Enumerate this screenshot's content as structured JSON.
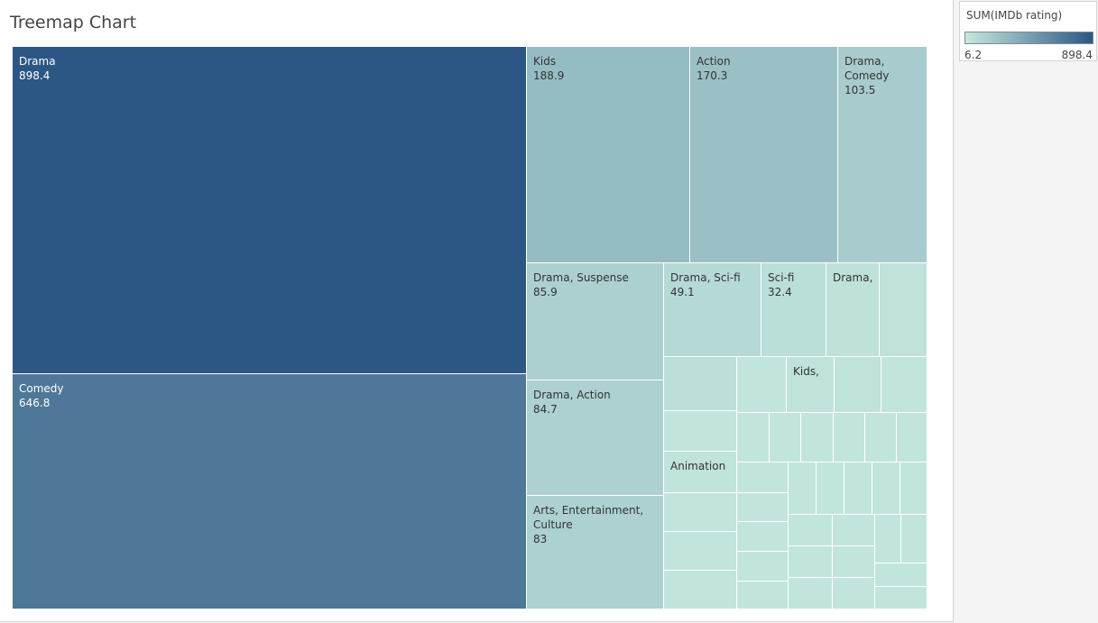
{
  "chart_data": {
    "type": "treemap",
    "title": "Treemap Chart",
    "measure": "SUM(IMDb rating)",
    "color_range": [
      6.2,
      898.4
    ],
    "colors": {
      "low": "#c5e8de",
      "high": "#2c5785"
    },
    "items": [
      {
        "name": "Drama",
        "value": 898.4,
        "label": "Drama\n898.4"
      },
      {
        "name": "Comedy",
        "value": 646.8,
        "label": "Comedy\n646.8"
      },
      {
        "name": "Kids",
        "value": 188.9,
        "label": "Kids\n188.9"
      },
      {
        "name": "Action",
        "value": 170.3,
        "label": "Action\n170.3"
      },
      {
        "name": "Drama, Comedy",
        "value": 103.5,
        "label": "Drama,\nComedy\n103.5"
      },
      {
        "name": "Drama, Suspense",
        "value": 85.9,
        "label": "Drama, Suspense\n85.9"
      },
      {
        "name": "Drama, Action",
        "value": 84.7,
        "label": "Drama, Action\n84.7"
      },
      {
        "name": "Arts, Entertainment, Culture",
        "value": 83,
        "label": "Arts, Entertainment,\nCulture\n83"
      },
      {
        "name": "Drama, Sci-fi",
        "value": 49.1,
        "label": "Drama, Sci-fi\n49.1"
      },
      {
        "name": "Sci-fi",
        "value": 32.4,
        "label": "Sci-fi\n32.4"
      },
      {
        "name": "",
        "value": 22,
        "label": "Drama,"
      },
      {
        "name": "",
        "value": 19,
        "label": ""
      },
      {
        "name": "",
        "value": 26,
        "label": ""
      },
      {
        "name": "",
        "value": 17,
        "label": "Kids,"
      },
      {
        "name": "",
        "value": 19,
        "label": ""
      },
      {
        "name": "",
        "value": 15,
        "label": "Animation"
      },
      {
        "name": "",
        "value": 12,
        "label": ""
      }
    ]
  },
  "legend": {
    "title": "SUM(IMDb rating)",
    "min_label": "6.2",
    "max_label": "898.4"
  }
}
